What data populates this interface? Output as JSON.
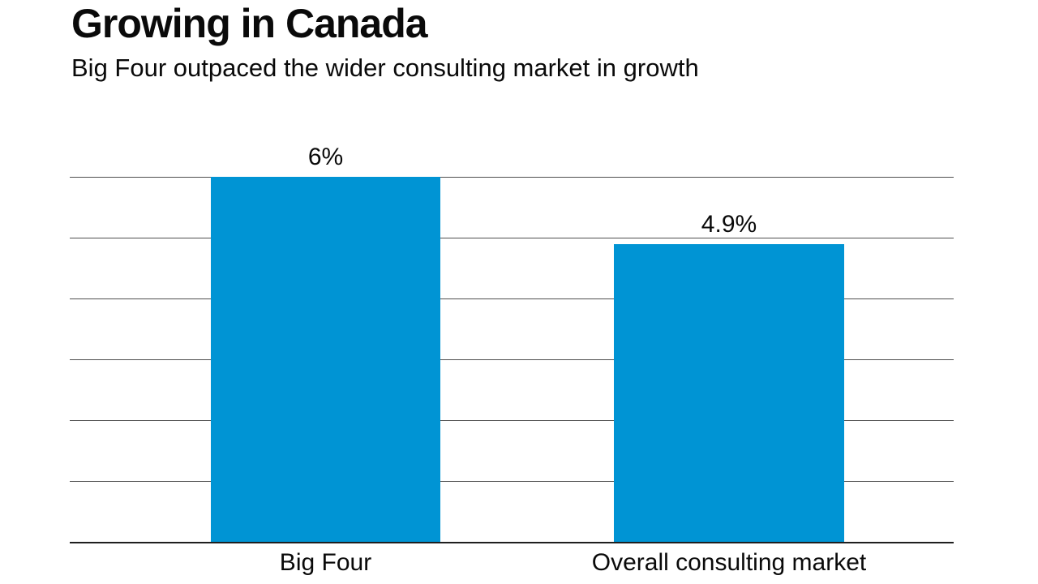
{
  "header": {
    "title": "Growing in Canada",
    "subtitle": "Big Four outpaced the wider consulting market in growth"
  },
  "chart_data": {
    "type": "bar",
    "title": "Growing in Canada",
    "subtitle": "Big Four outpaced the wider consulting market in growth",
    "categories": [
      "Big Four",
      "Overall consulting market"
    ],
    "values": [
      6,
      4.9
    ],
    "value_labels": [
      "6%",
      "4.9%"
    ],
    "xlabel": "",
    "ylabel": "",
    "ylim": [
      0,
      6
    ],
    "gridline_values": [
      1,
      2,
      3,
      4,
      5,
      6
    ],
    "grid": true,
    "legend": false,
    "y_tick_labels_visible": false,
    "colors": {
      "bar": "#0094d4",
      "gridline": "#4f4f4f",
      "baseline": "#1f1f1f",
      "text": "#0a0a0a"
    }
  }
}
